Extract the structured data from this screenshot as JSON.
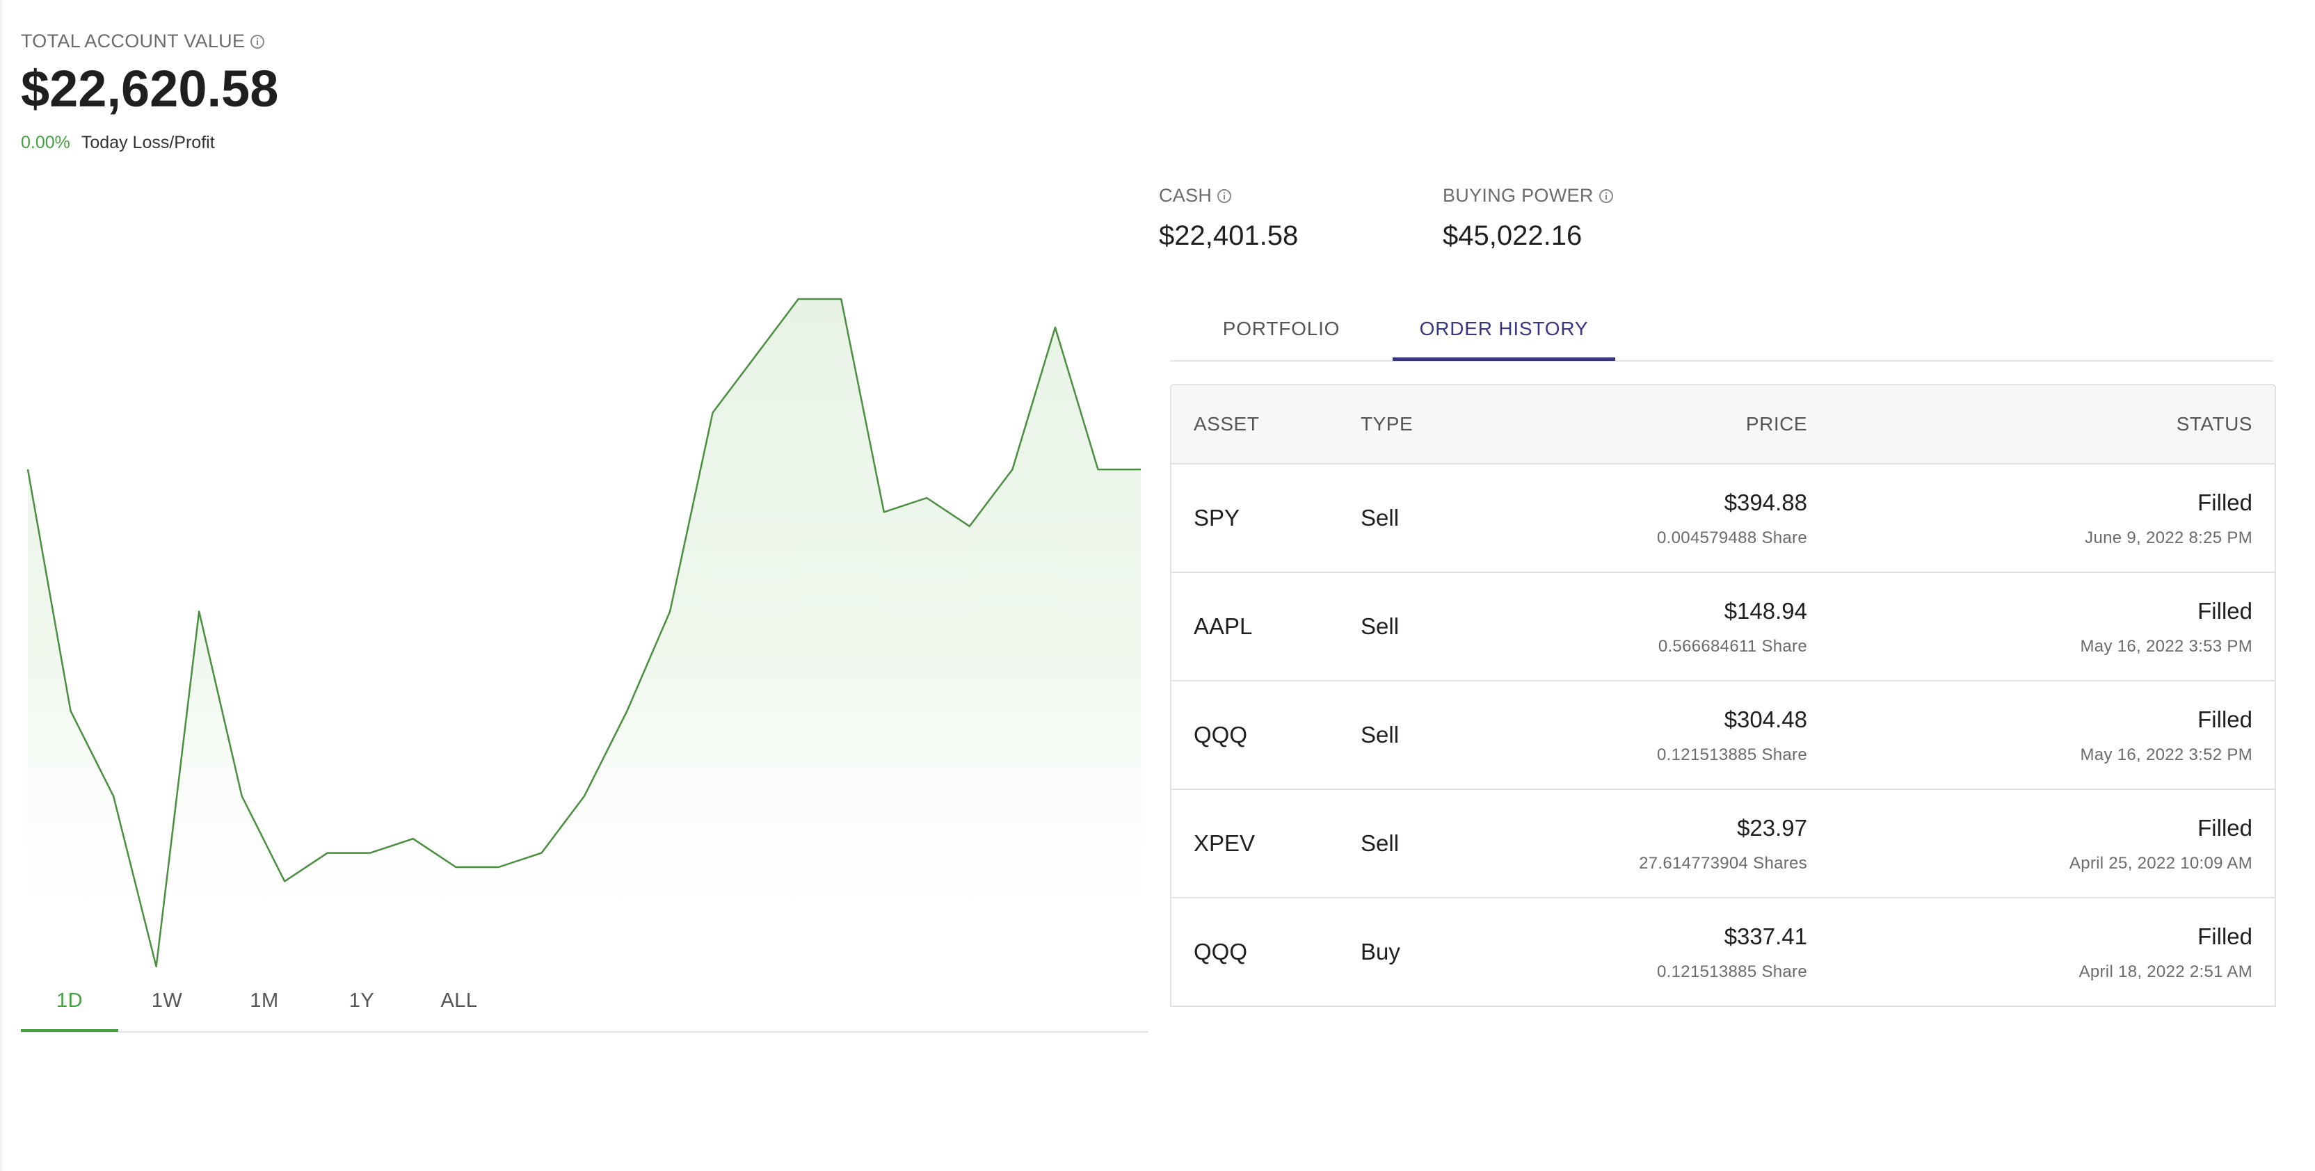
{
  "account": {
    "total_label": "TOTAL ACCOUNT VALUE",
    "total_value": "$22,620.58",
    "change_percent": "0.00%",
    "change_label": "Today Loss/Profit"
  },
  "balances": {
    "cash_label": "CASH",
    "cash_value": "$22,401.58",
    "buying_power_label": "BUYING POWER",
    "buying_power_value": "$45,022.16"
  },
  "range_tabs": {
    "active": "1D",
    "items": [
      "1D",
      "1W",
      "1M",
      "1Y",
      "ALL"
    ]
  },
  "main_tabs": {
    "active": "ORDER HISTORY",
    "items": [
      "PORTFOLIO",
      "ORDER HISTORY"
    ]
  },
  "orders": {
    "headers": {
      "asset": "ASSET",
      "type": "TYPE",
      "price": "PRICE",
      "status": "STATUS"
    },
    "rows": [
      {
        "asset": "SPY",
        "type": "Sell",
        "price": "$394.88",
        "quantity": "0.004579488 Share",
        "status": "Filled",
        "date": "June 9, 2022 8:25 PM"
      },
      {
        "asset": "AAPL",
        "type": "Sell",
        "price": "$148.94",
        "quantity": "0.566684611 Share",
        "status": "Filled",
        "date": "May 16, 2022 3:53 PM"
      },
      {
        "asset": "QQQ",
        "type": "Sell",
        "price": "$304.48",
        "quantity": "0.121513885 Share",
        "status": "Filled",
        "date": "May 16, 2022 3:52 PM"
      },
      {
        "asset": "XPEV",
        "type": "Sell",
        "price": "$23.97",
        "quantity": "27.614773904 Shares",
        "status": "Filled",
        "date": "April 25, 2022 10:09 AM"
      },
      {
        "asset": "QQQ",
        "type": "Buy",
        "price": "$337.41",
        "quantity": "0.121513885 Share",
        "status": "Filled",
        "date": "April 18, 2022 2:51 AM"
      }
    ]
  },
  "colors": {
    "positive": "#45a140",
    "accent": "#3a3580",
    "line": "#4a8f3f"
  },
  "icons": {
    "info": "info-circle-icon"
  },
  "chart_data": {
    "type": "area",
    "title": "",
    "xlabel": "",
    "ylabel": "",
    "grid": false,
    "legend": "none",
    "series": [
      {
        "values": [
          59,
          42,
          36,
          24,
          49,
          36,
          30,
          32,
          32,
          33,
          31,
          31,
          32,
          36,
          42,
          49,
          63,
          67,
          71,
          71,
          56,
          57,
          55,
          59,
          69,
          59,
          59
        ]
      }
    ],
    "ylim": [
      24,
      71
    ]
  }
}
